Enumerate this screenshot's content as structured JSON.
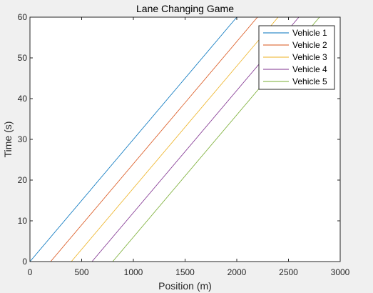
{
  "chart_data": {
    "type": "line",
    "title": "Lane Changing Game",
    "xlabel": "Position (m)",
    "ylabel": "Time (s)",
    "xlim": [
      0,
      3000
    ],
    "ylim": [
      0,
      60
    ],
    "xticks": [
      0,
      500,
      1000,
      1500,
      2000,
      2500,
      3000
    ],
    "yticks": [
      0,
      10,
      20,
      30,
      40,
      50,
      60
    ],
    "grid": false,
    "legend_position": "top-right",
    "series": [
      {
        "name": "Vehicle 1",
        "color": "#0072BD",
        "x": [
          0,
          2000
        ],
        "y": [
          0,
          60
        ]
      },
      {
        "name": "Vehicle 2",
        "color": "#D95319",
        "x": [
          200,
          2200
        ],
        "y": [
          0,
          60
        ]
      },
      {
        "name": "Vehicle 3",
        "color": "#EDB120",
        "x": [
          400,
          2400
        ],
        "y": [
          0,
          60
        ]
      },
      {
        "name": "Vehicle 4",
        "color": "#7E2F8E",
        "x": [
          600,
          2600
        ],
        "y": [
          0,
          60
        ]
      },
      {
        "name": "Vehicle 5",
        "color": "#77AC30",
        "x": [
          800,
          2800
        ],
        "y": [
          0,
          60
        ]
      }
    ]
  }
}
